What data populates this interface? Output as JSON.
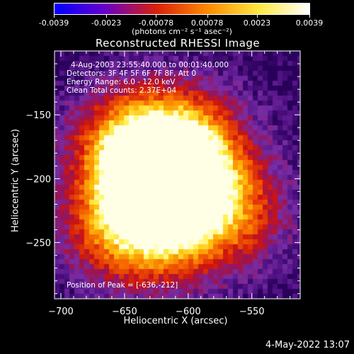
{
  "colorbar": {
    "tick_labels": [
      "-0.0039",
      "-0.0023",
      "-0.00078",
      "0.00078",
      "0.0023",
      "0.0039"
    ],
    "tick_values": [
      -0.0039,
      -0.0023,
      -0.00078,
      0.00078,
      0.0023,
      0.0039
    ],
    "units": "(photons cm⁻² s⁻¹ asec⁻²)",
    "colors": [
      "#0000ff",
      "#6a00c8",
      "#d8200a",
      "#ff8a00",
      "#ffe840",
      "#ffffff"
    ]
  },
  "header": {
    "title": "Reconstructed RHESSI Image"
  },
  "info": {
    "time_range": "4-Aug-2003 23:55:40.000 to 00:01:40.000",
    "detectors": "Detectors: 3F 4F 5F 6F 7F 8F, Att 0",
    "energy": "Energy Range: 6.0 - 12.0 keV",
    "clean": "Clean     Total counts: 2.37E+04"
  },
  "peak": {
    "label": "Position of Peak = [-636,-212]"
  },
  "chart_data": {
    "type": "heatmap",
    "title": "Reconstructed RHESSI Image",
    "xlabel": "Heliocentric X (arcsec)",
    "ylabel": "Heliocentric Y (arcsec)",
    "xlim": [
      -705,
      -512
    ],
    "ylim": [
      -294,
      -100
    ],
    "x_ticks": [
      -700,
      -650,
      -600,
      -550
    ],
    "x_tick_labels": [
      "−700",
      "−650",
      "−600",
      "−550"
    ],
    "y_ticks": [
      -150,
      -200,
      -250
    ],
    "y_tick_labels": [
      "−150",
      "−200",
      "−250"
    ],
    "value_range": [
      -0.0039,
      0.0039
    ],
    "peak_position": [
      -636,
      -212
    ],
    "blobs": [
      {
        "x": -636,
        "y": -212,
        "amp": 1.0
      },
      {
        "x": -596,
        "y": -208,
        "amp": 0.92
      },
      {
        "x": -624,
        "y": -182,
        "amp": 0.8
      },
      {
        "x": -650,
        "y": -170,
        "amp": 0.62
      },
      {
        "x": -600,
        "y": -168,
        "amp": 0.58
      },
      {
        "x": -665,
        "y": -245,
        "amp": 0.42
      },
      {
        "x": -560,
        "y": -230,
        "amp": 0.48
      },
      {
        "x": -620,
        "y": -245,
        "amp": 0.6
      }
    ]
  },
  "axes": {
    "xlabel": "Heliocentric X (arcsec)",
    "ylabel": "Heliocentric Y (arcsec)"
  },
  "footer": {
    "date": "4-May-2022 13:07"
  }
}
